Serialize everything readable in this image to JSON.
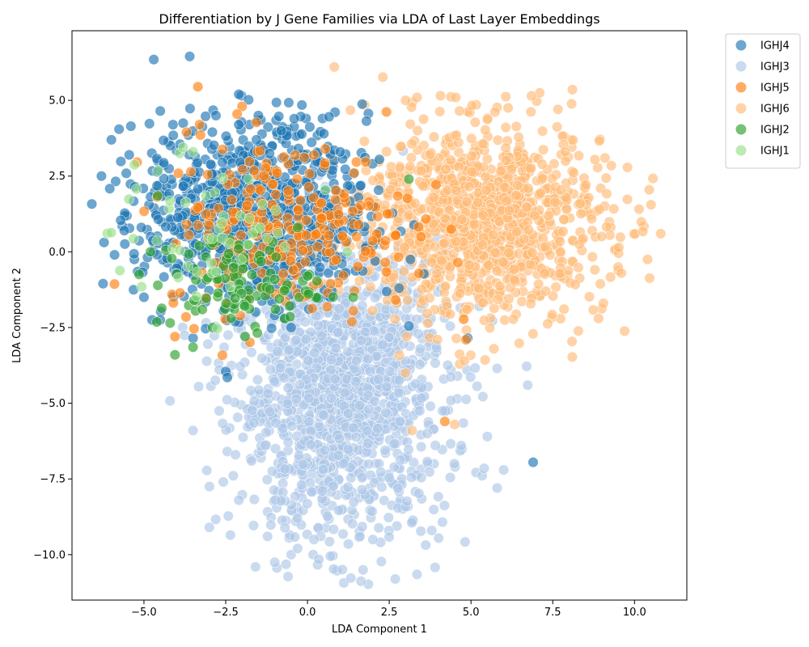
{
  "chart_data": {
    "type": "scatter",
    "title": "Differentiation by J Gene Families via LDA of Last Layer Embeddings",
    "xlabel": "LDA Component 1",
    "ylabel": "LDA Component 2",
    "xlim": [
      -7.2,
      11.6
    ],
    "ylim": [
      -11.5,
      7.3
    ],
    "xticks": [
      -5.0,
      -2.5,
      0.0,
      2.5,
      5.0,
      7.5,
      10.0
    ],
    "xtick_labels": [
      "−5.0",
      "−2.5",
      "0.0",
      "2.5",
      "5.0",
      "7.5",
      "10.0"
    ],
    "yticks": [
      -10.0,
      -7.5,
      -5.0,
      -2.5,
      0.0,
      2.5,
      5.0
    ],
    "ytick_labels": [
      "−10.0",
      "−7.5",
      "−5.0",
      "−2.5",
      "0.0",
      "2.5",
      "5.0"
    ],
    "grid": false,
    "legend_position": "outside-upper-right",
    "marker_alpha": 0.65,
    "series": [
      {
        "name": "IGHJ4",
        "color": "#1f77b4",
        "cluster": {
          "center": [
            -1.6,
            1.3
          ],
          "spread": [
            1.7,
            1.5
          ],
          "count": 900
        },
        "points": [
          [
            -4.7,
            6.35
          ],
          [
            -3.6,
            6.45
          ],
          [
            -6.3,
            2.5
          ],
          [
            -6.25,
            -1.05
          ],
          [
            -2.1,
            5.2
          ],
          [
            -5.4,
            4.15
          ],
          [
            -4.5,
            4.65
          ],
          [
            -1.5,
            4.5
          ],
          [
            -5.45,
            3.2
          ],
          [
            -0.8,
            4.0
          ],
          [
            2.2,
            3.05
          ],
          [
            2.8,
            -1.2
          ],
          [
            3.1,
            -2.45
          ],
          [
            4.9,
            -2.85
          ],
          [
            6.9,
            -6.95
          ],
          [
            -2.5,
            -3.95
          ],
          [
            -2.45,
            -4.15
          ],
          [
            -3.5,
            -2.85
          ],
          [
            -4.75,
            -2.25
          ],
          [
            -4.5,
            -2.25
          ],
          [
            -0.5,
            -2.5
          ],
          [
            -3.8,
            4.25
          ],
          [
            2.0,
            0.2
          ],
          [
            0.5,
            3.9
          ],
          [
            -5.0,
            -1.5
          ],
          [
            -5.6,
            0.7
          ],
          [
            -5.9,
            -0.1
          ],
          [
            -2.8,
            4.5
          ],
          [
            -2.1,
            4.2
          ],
          [
            1.0,
            3.3
          ]
        ]
      },
      {
        "name": "IGHJ3",
        "color": "#aec7e8",
        "cluster": {
          "center": [
            1.0,
            -4.6
          ],
          "spread": [
            1.6,
            2.4
          ],
          "count": 1500
        },
        "points": [
          [
            3.35,
            -10.65
          ],
          [
            1.7,
            -10.5
          ],
          [
            -1.0,
            -10.25
          ],
          [
            -0.5,
            -10.0
          ],
          [
            0.7,
            -10.05
          ],
          [
            2.0,
            -9.5
          ],
          [
            -3.0,
            -9.1
          ],
          [
            5.8,
            -7.8
          ],
          [
            6.0,
            -7.2
          ],
          [
            5.4,
            -7.15
          ],
          [
            5.5,
            -6.1
          ],
          [
            5.8,
            -3.85
          ],
          [
            -2.1,
            -8.2
          ],
          [
            -3.5,
            -5.9
          ],
          [
            -2.7,
            -5.25
          ],
          [
            4.7,
            -6.4
          ],
          [
            -0.3,
            -9.8
          ],
          [
            0.2,
            -9.5
          ],
          [
            -2.2,
            -6.7
          ],
          [
            3.8,
            -9.2
          ]
        ]
      },
      {
        "name": "IGHJ5",
        "color": "#ff7f0e",
        "cluster": {
          "center": [
            -0.6,
            0.8
          ],
          "spread": [
            1.9,
            1.4
          ],
          "count": 260
        },
        "points": [
          [
            -3.35,
            5.45
          ],
          [
            -2.0,
            4.8
          ],
          [
            -2.15,
            4.55
          ],
          [
            -3.3,
            4.2
          ],
          [
            -4.05,
            -2.8
          ],
          [
            4.2,
            -5.6
          ],
          [
            4.85,
            -2.9
          ],
          [
            1.4,
            -1.95
          ],
          [
            -3.7,
            3.95
          ],
          [
            0.2,
            3.2
          ],
          [
            1.5,
            0.5
          ],
          [
            -1.8,
            1.0
          ]
        ]
      },
      {
        "name": "IGHJ6",
        "color": "#ffbb78",
        "cluster": {
          "center": [
            5.3,
            1.0
          ],
          "spread": [
            1.9,
            1.6
          ],
          "count": 1100
        },
        "points": [
          [
            7.1,
            5.25
          ],
          [
            6.85,
            5.15
          ],
          [
            4.65,
            4.65
          ],
          [
            3.0,
            5.0
          ],
          [
            1.75,
            4.85
          ],
          [
            10.8,
            0.6
          ],
          [
            10.4,
            -0.25
          ],
          [
            10.45,
            2.05
          ],
          [
            8.9,
            -2.2
          ],
          [
            9.05,
            -1.7
          ],
          [
            5.7,
            -3.2
          ],
          [
            3.0,
            -4.0
          ],
          [
            3.2,
            -5.9
          ],
          [
            4.5,
            -5.7
          ],
          [
            4.8,
            -3.6
          ],
          [
            9.5,
            -0.5
          ],
          [
            9.6,
            -0.7
          ]
        ]
      },
      {
        "name": "IGHJ2",
        "color": "#2ca02c",
        "cluster": {
          "center": [
            -2.2,
            -1.0
          ],
          "spread": [
            1.2,
            0.8
          ],
          "count": 100
        },
        "points": [
          [
            3.1,
            2.4
          ],
          [
            -4.05,
            -3.4
          ],
          [
            -3.5,
            -3.15
          ],
          [
            -4.2,
            -2.35
          ],
          [
            -2.9,
            -2.5
          ],
          [
            -4.8,
            0.0
          ],
          [
            -0.3,
            0.8
          ],
          [
            1.4,
            -1.5
          ]
        ]
      },
      {
        "name": "IGHJ1",
        "color": "#98df8a",
        "cluster": {
          "center": [
            -3.0,
            0.5
          ],
          "spread": [
            1.5,
            1.2
          ],
          "count": 45
        },
        "points": [
          [
            -3.8,
            3.45
          ],
          [
            -3.5,
            3.3
          ],
          [
            0.55,
            2.05
          ],
          [
            -3.95,
            -0.85
          ],
          [
            -1.8,
            2.4
          ],
          [
            -2.6,
            0.45
          ],
          [
            -3.9,
            0.05
          ]
        ]
      }
    ]
  }
}
